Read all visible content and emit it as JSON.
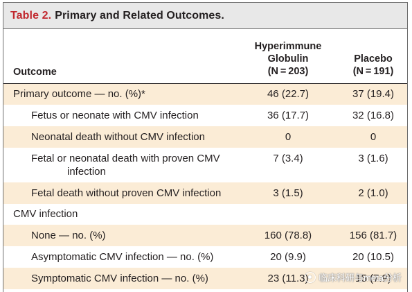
{
  "table": {
    "label": "Table 2.",
    "title": "Primary and Related Outcomes.",
    "headers": {
      "outcome": "Outcome",
      "col1": [
        "Hyperimmune",
        "Globulin",
        "(N = 203)"
      ],
      "col2": [
        "Placebo",
        "(N = 191)"
      ]
    },
    "rows": [
      {
        "label": "Primary outcome — no. (%)*",
        "v1": "46 (22.7)",
        "v2": "37 (19.4)"
      },
      {
        "label": "Fetus or neonate with CMV infection",
        "v1": "36 (17.7)",
        "v2": "32 (16.8)"
      },
      {
        "label": "Neonatal death without CMV infection",
        "v1": "0",
        "v2": "0"
      },
      {
        "label": "Fetal or neonatal death with proven CMV",
        "label2": "infection",
        "v1": "7 (3.4)",
        "v2": "3 (1.6)"
      },
      {
        "label": "Fetal death without proven CMV infection",
        "v1": "3 (1.5)",
        "v2": "2 (1.0)"
      },
      {
        "label": "CMV infection",
        "v1": "",
        "v2": ""
      },
      {
        "label": "None — no. (%)",
        "v1": "160 (78.8)",
        "v2": "156 (81.7)"
      },
      {
        "label": "Asymptomatic CMV infection — no. (%)",
        "v1": "20 (9.9)",
        "v2": "20 (10.5)"
      },
      {
        "label": "Symptomatic CMV infection — no. (%)",
        "v1": "23 (11.3)",
        "v2": "15 (7.9)"
      }
    ]
  },
  "watermark": {
    "text": "临床科研与meta分析",
    "icon": "wechat-icon"
  }
}
